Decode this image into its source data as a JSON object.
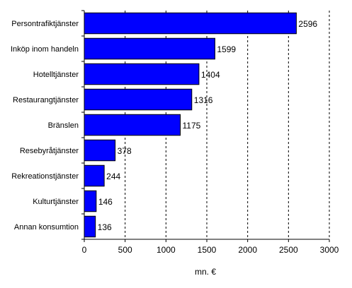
{
  "chart_data": {
    "type": "bar",
    "orientation": "horizontal",
    "categories": [
      "Persontrafiktjänster",
      "Inköp inom handeln",
      "Hotelltjänster",
      "Restaurangtjänster",
      "Bränslen",
      "Resebyråtjänster",
      "Rekreationstjänster",
      "Kulturtjänster",
      "Annan konsumtion"
    ],
    "values": [
      2596,
      1599,
      1404,
      1316,
      1175,
      378,
      244,
      146,
      136
    ],
    "value_labels": [
      "2596",
      "1599",
      "1404",
      "1316",
      "1175",
      "378",
      "244",
      "146",
      "136"
    ],
    "xlabel": "mn. €",
    "ylabel": "",
    "xlim": [
      0,
      3000
    ],
    "xticks": [
      "0",
      "500",
      "1000",
      "1500",
      "2000",
      "2500",
      "3000"
    ],
    "xtick_values": [
      0,
      500,
      1000,
      1500,
      2000,
      2500,
      3000
    ],
    "grid": "vertical dashed",
    "bar_color": "#0000ff"
  }
}
